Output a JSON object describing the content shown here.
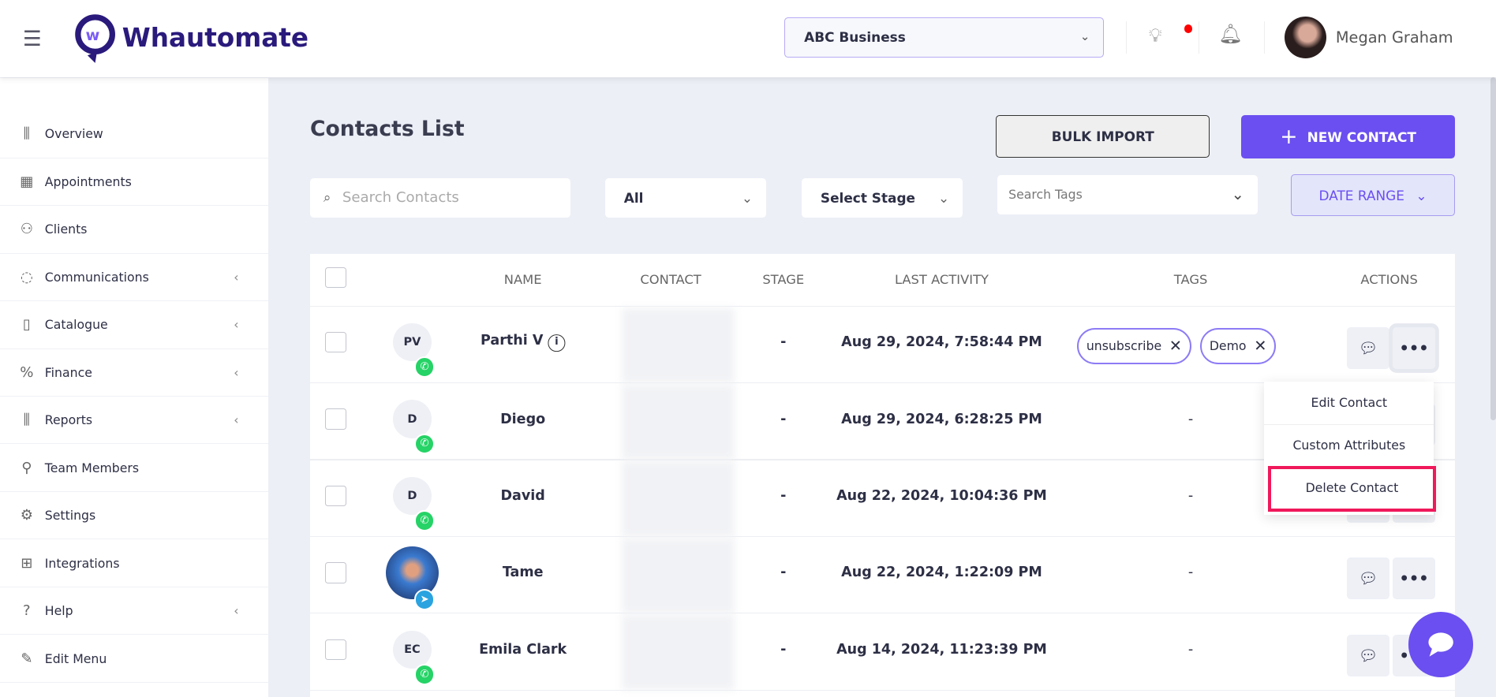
{
  "header": {
    "logo": "Whautomate",
    "business": "ABC Business",
    "user": "Megan Graham"
  },
  "sidebar": {
    "items": [
      {
        "label": "Overview",
        "icon": "bar-chart-icon",
        "chev": false
      },
      {
        "label": "Appointments",
        "icon": "calendar-icon",
        "chev": false
      },
      {
        "label": "Clients",
        "icon": "users-icon",
        "chev": false
      },
      {
        "label": "Communications",
        "icon": "chat-icon",
        "chev": true
      },
      {
        "label": "Catalogue",
        "icon": "book-icon",
        "chev": true
      },
      {
        "label": "Finance",
        "icon": "percent-icon",
        "chev": true
      },
      {
        "label": "Reports",
        "icon": "bar-chart-icon",
        "chev": true
      },
      {
        "label": "Team Members",
        "icon": "team-icon",
        "chev": false
      },
      {
        "label": "Settings",
        "icon": "gear-icon",
        "chev": false
      },
      {
        "label": "Integrations",
        "icon": "network-icon",
        "chev": false
      },
      {
        "label": "Help",
        "icon": "help-icon",
        "chev": true
      },
      {
        "label": "Edit Menu",
        "icon": "pencil-icon",
        "chev": false
      }
    ]
  },
  "main": {
    "title": "Contacts List",
    "bulk_import": "BULK IMPORT",
    "new_contact": "NEW CONTACT",
    "search_placeholder": "Search Contacts",
    "filter_all": "All",
    "select_stage": "Select Stage",
    "search_tags": "Search Tags",
    "date_range": "DATE RANGE"
  },
  "table": {
    "headers": [
      "NAME",
      "CONTACT",
      "STAGE",
      "LAST ACTIVITY",
      "TAGS",
      "ACTIONS"
    ],
    "rows": [
      {
        "initials": "PV",
        "name": "Parthi V",
        "stage": "-",
        "last": "Aug 29, 2024, 7:58:44 PM",
        "tags": [
          "unsubscribe",
          "Demo"
        ],
        "channel": "whatsapp"
      },
      {
        "initials": "D",
        "name": "Diego",
        "stage": "-",
        "last": "Aug 29, 2024, 6:28:25 PM",
        "tags": "-",
        "channel": "whatsapp"
      },
      {
        "initials": "D",
        "name": "David",
        "stage": "-",
        "last": "Aug 22, 2024, 10:04:36 PM",
        "tags": "-",
        "channel": "whatsapp"
      },
      {
        "initials": "",
        "name": "Tame",
        "stage": "-",
        "last": "Aug 22, 2024, 1:22:09 PM",
        "tags": "-",
        "channel": "telegram"
      },
      {
        "initials": "EC",
        "name": "Emila Clark",
        "stage": "-",
        "last": "Aug 14, 2024, 11:23:39 PM",
        "tags": "-",
        "channel": "whatsapp"
      }
    ]
  },
  "menu": {
    "items": [
      "Edit Contact",
      "Custom Attributes",
      "Delete Contact"
    ]
  },
  "colors": {
    "accent": "#6b4ff0",
    "highlight": "#f0185a"
  }
}
